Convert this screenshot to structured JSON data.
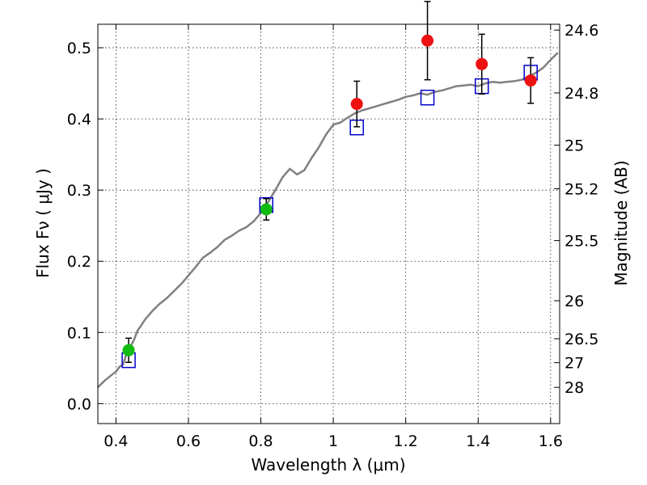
{
  "chart_data": {
    "type": "scatter",
    "title": "",
    "xlabel": "Wavelength  λ (μm)",
    "ylabel": "Flux  Fν  ( μJy )",
    "y2label": "Magnitude (AB)",
    "xlim": [
      0.35,
      1.625
    ],
    "ylim": [
      -0.028,
      0.533
    ],
    "grid": true,
    "x_ticks": [
      0.4,
      0.6,
      0.8,
      1.0,
      1.2,
      1.4,
      1.6
    ],
    "x_tick_labels": [
      "0.4",
      "0.6",
      "0.8",
      "1",
      "1.2",
      "1.4",
      "1.6"
    ],
    "y_ticks": [
      0.0,
      0.1,
      0.2,
      0.3,
      0.4,
      0.5
    ],
    "y_tick_labels": [
      "0.0",
      "0.1",
      "0.2",
      "0.3",
      "0.4",
      "0.5"
    ],
    "mag_ticks": [
      24.6,
      24.8,
      25,
      25.2,
      25.5,
      26,
      26.5,
      27,
      28
    ],
    "mag_tick_labels": [
      "24.6",
      "24.8",
      "25",
      "25.2",
      "25.5",
      "26",
      "26.5",
      "27",
      "28"
    ],
    "colors": {
      "sed": "#808080",
      "model": "#0000cc",
      "green": "#11bb11",
      "red": "#ee1111",
      "errorbar": "#000000"
    },
    "series": [
      {
        "kind": "line",
        "x": [
          0.35,
          0.36,
          0.37,
          0.38,
          0.39,
          0.4,
          0.41,
          0.42,
          0.43,
          0.44,
          0.45,
          0.46,
          0.47,
          0.48,
          0.5,
          0.52,
          0.54,
          0.56,
          0.58,
          0.6,
          0.62,
          0.64,
          0.66,
          0.68,
          0.7,
          0.72,
          0.74,
          0.76,
          0.78,
          0.8,
          0.82,
          0.84,
          0.86,
          0.88,
          0.9,
          0.92,
          0.94,
          0.96,
          0.98,
          1.0,
          1.02,
          1.04,
          1.06,
          1.08,
          1.1,
          1.12,
          1.14,
          1.16,
          1.18,
          1.2,
          1.22,
          1.24,
          1.26,
          1.28,
          1.3,
          1.32,
          1.34,
          1.36,
          1.38,
          1.4,
          1.42,
          1.44,
          1.46,
          1.48,
          1.5,
          1.52,
          1.54,
          1.56,
          1.58,
          1.6,
          1.62
        ],
        "y": [
          0.023,
          0.028,
          0.033,
          0.037,
          0.041,
          0.045,
          0.052,
          0.055,
          0.072,
          0.08,
          0.09,
          0.103,
          0.11,
          0.118,
          0.13,
          0.14,
          0.148,
          0.158,
          0.168,
          0.18,
          0.192,
          0.205,
          0.212,
          0.22,
          0.23,
          0.236,
          0.243,
          0.248,
          0.256,
          0.268,
          0.283,
          0.3,
          0.318,
          0.33,
          0.322,
          0.328,
          0.345,
          0.36,
          0.378,
          0.392,
          0.395,
          0.402,
          0.408,
          0.412,
          0.415,
          0.418,
          0.421,
          0.424,
          0.427,
          0.431,
          0.433,
          0.436,
          0.434,
          0.438,
          0.44,
          0.443,
          0.446,
          0.447,
          0.448,
          0.446,
          0.45,
          0.452,
          0.451,
          0.452,
          0.453,
          0.455,
          0.46,
          0.465,
          0.472,
          0.483,
          0.493
        ]
      },
      {
        "kind": "model-squares",
        "x": [
          0.435,
          0.815,
          1.065,
          1.26,
          1.41,
          1.545
        ],
        "y": [
          0.061,
          0.279,
          0.388,
          0.43,
          0.446,
          0.465
        ]
      },
      {
        "kind": "points",
        "color": "green",
        "x": [
          0.435,
          0.815
        ],
        "y": [
          0.075,
          0.273
        ],
        "err": [
          0.017,
          0.015
        ]
      },
      {
        "kind": "points",
        "color": "red",
        "x": [
          1.065,
          1.26,
          1.41,
          1.545
        ],
        "y": [
          0.421,
          0.51,
          0.477,
          0.454
        ],
        "err": [
          0.032,
          0.055,
          0.042,
          0.032
        ]
      }
    ]
  }
}
